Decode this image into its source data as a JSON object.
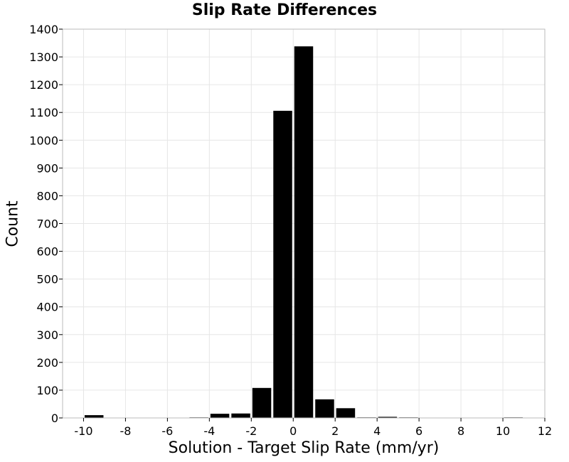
{
  "chart_data": {
    "type": "bar",
    "title": "Slip Rate Differences",
    "xlabel": "Solution - Target Slip Rate (mm/yr)",
    "ylabel": "Count",
    "xlim": [
      -11,
      12
    ],
    "ylim": [
      0,
      1400
    ],
    "bin_width": 1,
    "x_ticks": [
      -10,
      -8,
      -6,
      -4,
      -2,
      0,
      2,
      4,
      6,
      8,
      10,
      12
    ],
    "y_ticks": [
      0,
      100,
      200,
      300,
      400,
      500,
      600,
      700,
      800,
      900,
      1000,
      1100,
      1200,
      1300,
      1400
    ],
    "x_tick_labels": [
      "-10",
      "-8",
      "-6",
      "-4",
      "-2",
      "0",
      "2",
      "4",
      "6",
      "8",
      "10",
      "12"
    ],
    "y_tick_labels": [
      "0",
      "100",
      "200",
      "300",
      "400",
      "500",
      "600",
      "700",
      "800",
      "900",
      "1000",
      "1100",
      "1200",
      "1300",
      "1400"
    ],
    "grid": true,
    "bar_color": "#000000",
    "bins": [
      {
        "x": -9.5,
        "value": 10
      },
      {
        "x": -4.5,
        "value": 2
      },
      {
        "x": -3.5,
        "value": 15
      },
      {
        "x": -2.5,
        "value": 16
      },
      {
        "x": -1.5,
        "value": 108
      },
      {
        "x": -0.5,
        "value": 1106
      },
      {
        "x": 0.5,
        "value": 1338
      },
      {
        "x": 1.5,
        "value": 67
      },
      {
        "x": 2.5,
        "value": 35
      },
      {
        "x": 3.5,
        "value": 2
      },
      {
        "x": 4.5,
        "value": 4
      },
      {
        "x": 5.5,
        "value": 2
      },
      {
        "x": 10.5,
        "value": 2
      }
    ]
  }
}
